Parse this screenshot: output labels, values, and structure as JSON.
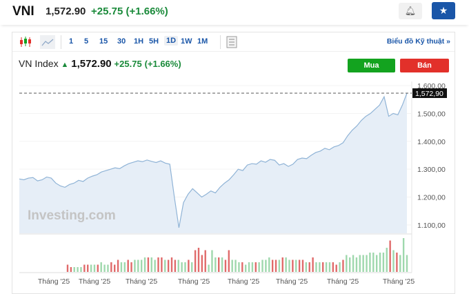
{
  "header": {
    "symbol": "VNI",
    "price": "1,572.90",
    "change": "+25.75",
    "change_pct": "(+1.66%)",
    "alert_icon": "bell-plus-icon",
    "watchlist_icon": "star-icon"
  },
  "toolbar": {
    "intervals": [
      "1",
      "5",
      "15",
      "30",
      "1H",
      "5H",
      "1D",
      "1W",
      "1M"
    ],
    "selected": "1D",
    "technical_link": "Biểu đồ Kỹ thuật »"
  },
  "instrument": {
    "name": "VN Index",
    "price": "1,572.90",
    "change": "+25.75",
    "change_pct": "(+1.66%)",
    "buy_label": "Mua",
    "sell_label": "Bán"
  },
  "colors": {
    "up": "#1a8a3a",
    "buy": "#13a31f",
    "sell": "#e2302a",
    "accent": "#1a56a8",
    "line": "#8fb3d6",
    "area": "#e6eef7",
    "vol_up": "#9fd8ad",
    "vol_down": "#e06a6a"
  },
  "watermark": "Investing.com",
  "chart_data": {
    "type": "area",
    "last_value_label": "1,572,90",
    "last_value": 1572.9,
    "ylim": [
      1070,
      1615
    ],
    "yticks": [
      "1.600,00",
      "1.500,00",
      "1.400,00",
      "1.300,00",
      "1.200,00",
      "1.100,00"
    ],
    "ytick_values": [
      1600,
      1500,
      1400,
      1300,
      1200,
      1100
    ],
    "xticks": [
      "Tháng '25",
      "Tháng '25",
      "Tháng '25",
      "Tháng '25",
      "Tháng '25",
      "Tháng '25",
      "Tháng '25",
      "Tháng '25"
    ],
    "values": [
      1265,
      1262,
      1268,
      1270,
      1258,
      1262,
      1272,
      1268,
      1250,
      1240,
      1235,
      1245,
      1250,
      1260,
      1256,
      1268,
      1275,
      1280,
      1290,
      1295,
      1300,
      1305,
      1302,
      1312,
      1320,
      1325,
      1330,
      1327,
      1333,
      1328,
      1324,
      1330,
      1322,
      1318,
      1200,
      1090,
      1180,
      1210,
      1230,
      1215,
      1200,
      1210,
      1222,
      1215,
      1235,
      1250,
      1262,
      1280,
      1300,
      1295,
      1315,
      1320,
      1318,
      1330,
      1325,
      1335,
      1332,
      1315,
      1320,
      1310,
      1318,
      1335,
      1340,
      1338,
      1350,
      1360,
      1365,
      1375,
      1370,
      1380,
      1385,
      1395,
      1420,
      1440,
      1455,
      1475,
      1490,
      1500,
      1515,
      1530,
      1560,
      1490,
      1500,
      1495,
      1530,
      1572.9
    ],
    "volume": [
      [
        3,
        0
      ],
      [
        2,
        0
      ],
      [
        2,
        1
      ],
      [
        2,
        1
      ],
      [
        2,
        1
      ],
      [
        3,
        0
      ],
      [
        3,
        0
      ],
      [
        3,
        1
      ],
      [
        3,
        1
      ],
      [
        3,
        0
      ],
      [
        4,
        1
      ],
      [
        3,
        1
      ],
      [
        3,
        1
      ],
      [
        4,
        0
      ],
      [
        3,
        0
      ],
      [
        5,
        0
      ],
      [
        4,
        1
      ],
      [
        4,
        1
      ],
      [
        5,
        0
      ],
      [
        4,
        0
      ],
      [
        5,
        1
      ],
      [
        5,
        1
      ],
      [
        5,
        1
      ],
      [
        6,
        1
      ],
      [
        6,
        0
      ],
      [
        6,
        1
      ],
      [
        5,
        1
      ],
      [
        6,
        0
      ],
      [
        6,
        0
      ],
      [
        5,
        1
      ],
      [
        5,
        0
      ],
      [
        6,
        0
      ],
      [
        5,
        0
      ],
      [
        5,
        1
      ],
      [
        4,
        1
      ],
      [
        4,
        1
      ],
      [
        5,
        0
      ],
      [
        4,
        1
      ],
      [
        9,
        0
      ],
      [
        10,
        0
      ],
      [
        7,
        0
      ],
      [
        9,
        0
      ],
      [
        3,
        1
      ],
      [
        9,
        1
      ],
      [
        6,
        1
      ],
      [
        6,
        0
      ],
      [
        6,
        1
      ],
      [
        5,
        0
      ],
      [
        9,
        0
      ],
      [
        5,
        1
      ],
      [
        5,
        1
      ],
      [
        4,
        1
      ],
      [
        4,
        0
      ],
      [
        3,
        1
      ],
      [
        4,
        1
      ],
      [
        4,
        1
      ],
      [
        4,
        0
      ],
      [
        4,
        1
      ],
      [
        5,
        1
      ],
      [
        5,
        1
      ],
      [
        6,
        1
      ],
      [
        5,
        0
      ],
      [
        5,
        0
      ],
      [
        5,
        1
      ],
      [
        6,
        0
      ],
      [
        6,
        1
      ],
      [
        5,
        1
      ],
      [
        5,
        0
      ],
      [
        5,
        1
      ],
      [
        5,
        0
      ],
      [
        5,
        0
      ],
      [
        4,
        1
      ],
      [
        4,
        0
      ],
      [
        6,
        0
      ],
      [
        4,
        1
      ],
      [
        4,
        1
      ],
      [
        4,
        0
      ],
      [
        4,
        1
      ],
      [
        4,
        1
      ],
      [
        4,
        0
      ],
      [
        3,
        0
      ],
      [
        4,
        1
      ],
      [
        5,
        0
      ],
      [
        7,
        1
      ],
      [
        6,
        1
      ],
      [
        7,
        1
      ],
      [
        6,
        1
      ],
      [
        7,
        1
      ],
      [
        7,
        1
      ],
      [
        7,
        1
      ],
      [
        8,
        1
      ],
      [
        8,
        1
      ],
      [
        7,
        1
      ],
      [
        8,
        1
      ],
      [
        8,
        1
      ],
      [
        10,
        1
      ],
      [
        13,
        0
      ],
      [
        9,
        1
      ],
      [
        8,
        0
      ],
      [
        7,
        1
      ],
      [
        14,
        1
      ],
      [
        7,
        1
      ]
    ]
  }
}
